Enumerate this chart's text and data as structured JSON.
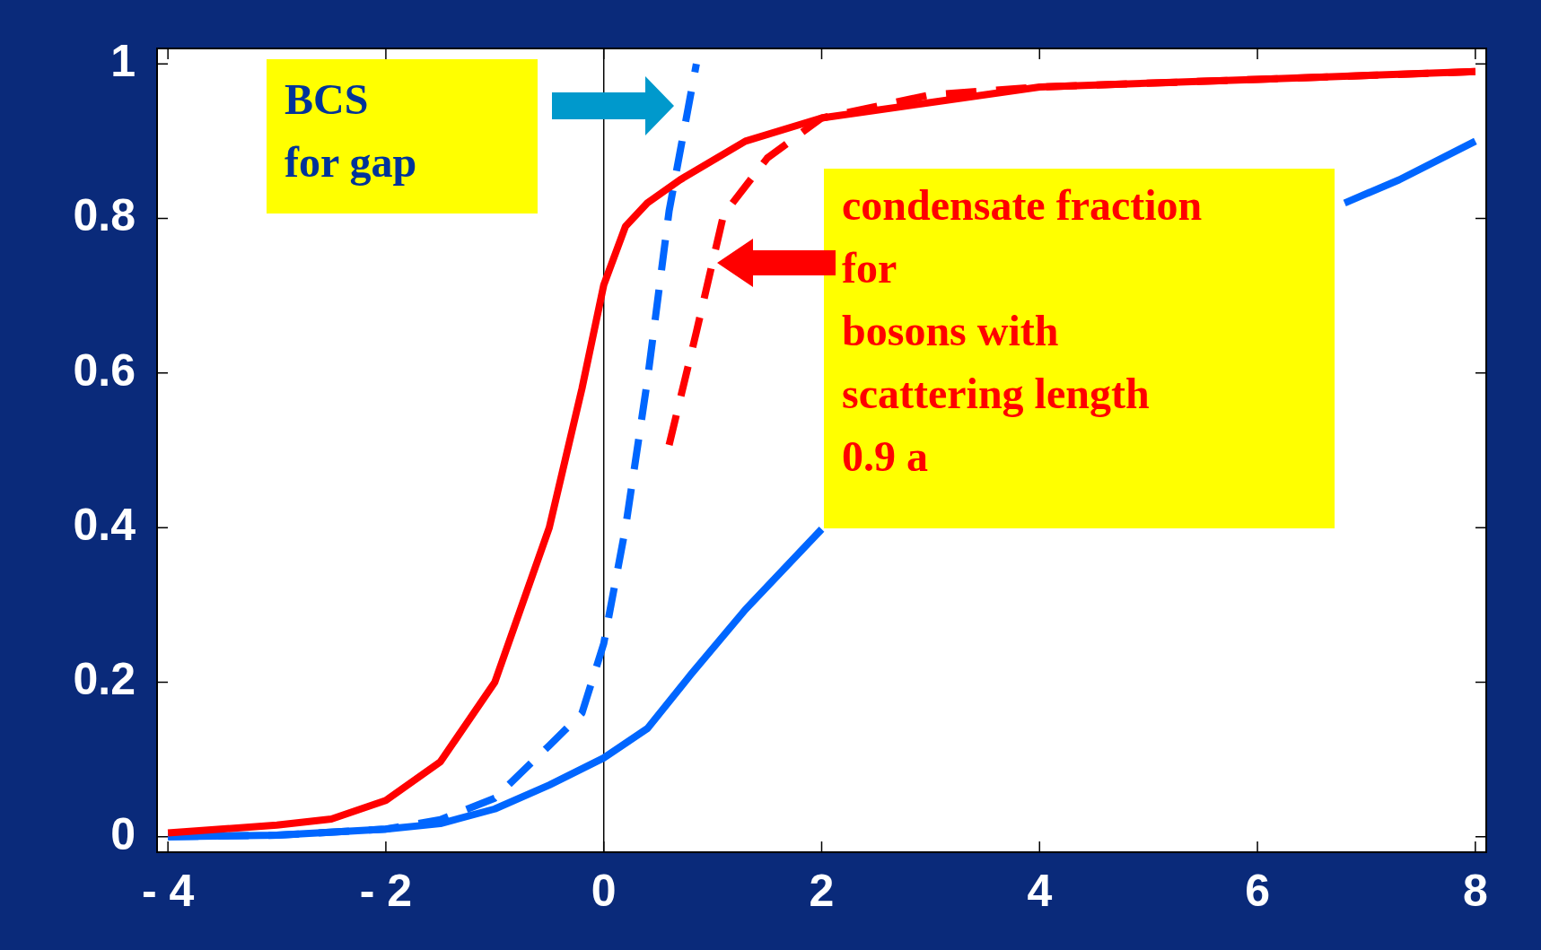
{
  "chart_data": {
    "type": "line",
    "annotations": [
      "BCS\nfor gap",
      "condensate fraction\nfor\nbosons with\nscattering length\n0.9 a"
    ],
    "xlim": [
      -4.1,
      8.1
    ],
    "xticks": [
      {
        "value": -4,
        "label": "- 4"
      },
      {
        "value": -2,
        "label": "- 2"
      },
      0,
      2,
      4,
      6,
      8
    ],
    "ylim": [
      -0.02,
      1.02
    ],
    "yticks": [
      0,
      0.2,
      0.4,
      0.6,
      0.8,
      1
    ],
    "grid": false,
    "legend": false,
    "marker": "none",
    "ref_lines": [
      {
        "axis": "x",
        "value": 0,
        "color": "#000000"
      }
    ],
    "series": [
      {
        "color": "#ff0000",
        "line_style": "solid",
        "x": [
          -4,
          -3,
          -2.5,
          -2,
          -1.5,
          -1,
          -0.5,
          -0.2,
          0,
          0.2,
          0.4,
          0.7,
          1.3,
          2,
          3,
          4,
          6,
          8
        ],
        "values": [
          0.005,
          0.015,
          0.023,
          0.047,
          0.097,
          0.2,
          0.4,
          0.58,
          0.714,
          0.79,
          0.82,
          0.85,
          0.9,
          0.93,
          0.95,
          0.97,
          0.98,
          0.99
        ]
      },
      {
        "color": "#ff0000",
        "line_style": "dashed",
        "x": [
          0.6,
          0.85,
          1.1,
          1.5,
          2,
          3,
          4,
          6,
          8
        ],
        "values": [
          0.507,
          0.653,
          0.805,
          0.878,
          0.93,
          0.96,
          0.97,
          0.98,
          0.99
        ]
      },
      {
        "color": "#0066ff",
        "line_style": "solid",
        "x": [
          -4,
          -3,
          -2,
          -1.5,
          -1,
          -0.5,
          0,
          0.4,
          0.8,
          1.3,
          2,
          4,
          6.8,
          7.3,
          8
        ],
        "values": [
          0,
          0.002,
          0.01,
          0.017,
          0.036,
          0.067,
          0.102,
          0.14,
          0.21,
          0.294,
          0.398,
          null,
          0.82,
          0.85,
          0.9
        ]
      },
      {
        "color": "#0066ff",
        "line_style": "dashed",
        "x": [
          -4,
          -3,
          -2,
          -1.5,
          -1,
          -0.5,
          -0.2,
          0,
          0.2,
          0.4,
          0.6,
          0.85
        ],
        "values": [
          0,
          0.002,
          0.01,
          0.022,
          0.05,
          0.118,
          0.16,
          0.25,
          0.4,
          0.59,
          0.81,
          1
        ]
      }
    ]
  }
}
